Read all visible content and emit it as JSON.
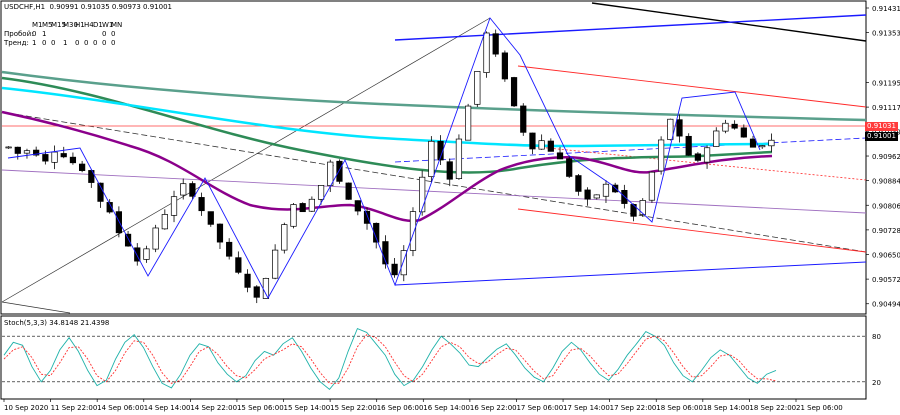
{
  "header": {
    "symbol_line": "USDCHF,H1  0.90991 0.91035 0.90973 0.91001",
    "timeframes": [
      "M1",
      "M5",
      "M15",
      "M30",
      "H1",
      "H4",
      "D1",
      "W1",
      "MN"
    ],
    "breakout_label": "Пробой:",
    "breakout_values": [
      "0",
      "1",
      "",
      "",
      "",
      "",
      "",
      "0",
      "0"
    ],
    "trend_label": "Тренд:",
    "trend_values": [
      "1",
      "0",
      "0",
      "1",
      "0",
      "0",
      "0",
      "0",
      "0"
    ]
  },
  "price_tags": {
    "red_level": "0.91031",
    "current": "0.91001"
  },
  "indicator": {
    "title": "Stoch(5,3,3) 34.8148 21.4398"
  },
  "colors": {
    "bull_candle": "#ffffff",
    "bear_candle": "#000000",
    "candle_outline": "#000000",
    "zigzag": "#1a1aff",
    "channel_red": "#ff2a2a",
    "ma_purple": "#8b008b",
    "ma_green": "#2e8b57",
    "ma_teal": "#5aa08c",
    "ma_cyan": "#00e5ff",
    "stoch_main": "#20b2aa",
    "stoch_signal": "#ff3030"
  },
  "chart_data": [
    {
      "type": "candlestick",
      "symbol": "USDCHF",
      "timeframe": "H1",
      "ylim": [
        0.90471,
        0.91431
      ],
      "y_ticks": [
        "0.91431",
        "0.91353",
        "0.91195",
        "0.91117",
        "0.91039",
        "0.90962",
        "0.90884",
        "0.90806",
        "0.90728",
        "0.90650",
        "0.90572",
        "0.90494"
      ],
      "x_ticks": [
        "10 Sep 2020",
        "11 Sep 22:00",
        "14 Sep 06:00",
        "14 Sep 14:00",
        "14 Sep 22:00",
        "15 Sep 06:00",
        "15 Sep 14:00",
        "15 Sep 22:00",
        "16 Sep 06:00",
        "16 Sep 14:00",
        "16 Sep 22:00",
        "17 Sep 06:00",
        "17 Sep 14:00",
        "17 Sep 22:00",
        "18 Sep 06:00",
        "18 Sep 14:00",
        "18 Sep 22:00",
        "21 Sep 06:00"
      ],
      "price_path": [
        0.9099,
        0.9097,
        0.9098,
        0.9097,
        0.9095,
        0.9098,
        0.9096,
        0.9094,
        0.9091,
        0.9088,
        0.9082,
        0.9078,
        0.9072,
        0.9068,
        0.9063,
        0.9067,
        0.9073,
        0.9078,
        0.9083,
        0.9087,
        0.9084,
        0.9079,
        0.9074,
        0.9069,
        0.9064,
        0.9059,
        0.9055,
        0.9051,
        0.9058,
        0.9066,
        0.9075,
        0.9081,
        0.9079,
        0.9083,
        0.9087,
        0.9094,
        0.9088,
        0.9082,
        0.9079,
        0.9075,
        0.9069,
        0.9062,
        0.9058,
        0.9066,
        0.9078,
        0.909,
        0.9101,
        0.9095,
        0.9089,
        0.9102,
        0.9112,
        0.9123,
        0.9135,
        0.9128,
        0.9121,
        0.9112,
        0.9104,
        0.9099,
        0.9101,
        0.9098,
        0.9095,
        0.909,
        0.9085,
        0.9082,
        0.9084,
        0.9087,
        0.9085,
        0.9081,
        0.9077,
        0.9082,
        0.9091,
        0.9101,
        0.9108,
        0.9102,
        0.9096,
        0.9095,
        0.9099,
        0.9104,
        0.9107,
        0.9105,
        0.9102,
        0.9099,
        0.91,
        0.9101
      ],
      "lines": [
        {
          "name": "red level",
          "value": 0.91031
        }
      ]
    },
    {
      "type": "line",
      "title": "Stoch(5,3,3) 34.8148 21.4398",
      "ylim": [
        0,
        100
      ],
      "levels": [
        20,
        80
      ],
      "y_ticks": [
        "80",
        "20"
      ],
      "series": [
        {
          "values": [
            55,
            72,
            68,
            40,
            20,
            35,
            62,
            78,
            60,
            35,
            15,
            22,
            50,
            72,
            82,
            65,
            40,
            18,
            12,
            30,
            55,
            70,
            66,
            45,
            30,
            20,
            28,
            48,
            60,
            55,
            70,
            78,
            60,
            38,
            20,
            10,
            25,
            60,
            90,
            85,
            70,
            55,
            30,
            15,
            22,
            40,
            62,
            80,
            70,
            58,
            42,
            40,
            52,
            63,
            70,
            55,
            38,
            26,
            20,
            38,
            60,
            72,
            62,
            45,
            30,
            22,
            36,
            55,
            70,
            86,
            80,
            68,
            45,
            28,
            20,
            35,
            52,
            62,
            55,
            40,
            25,
            18,
            30,
            35
          ]
        },
        {
          "values": [
            50,
            62,
            66,
            52,
            30,
            28,
            45,
            65,
            66,
            50,
            28,
            20,
            35,
            58,
            74,
            72,
            55,
            32,
            18,
            22,
            40,
            60,
            66,
            56,
            40,
            28,
            25,
            36,
            50,
            56,
            62,
            70,
            66,
            50,
            32,
            18,
            18,
            38,
            66,
            82,
            78,
            66,
            46,
            28,
            20,
            30,
            48,
            66,
            72,
            66,
            52,
            44,
            46,
            56,
            64,
            62,
            48,
            34,
            24,
            28,
            46,
            62,
            64,
            54,
            40,
            28,
            30,
            44,
            60,
            76,
            80,
            74,
            58,
            40,
            26,
            28,
            40,
            54,
            56,
            48,
            34,
            24,
            24,
            21
          ]
        }
      ]
    }
  ]
}
